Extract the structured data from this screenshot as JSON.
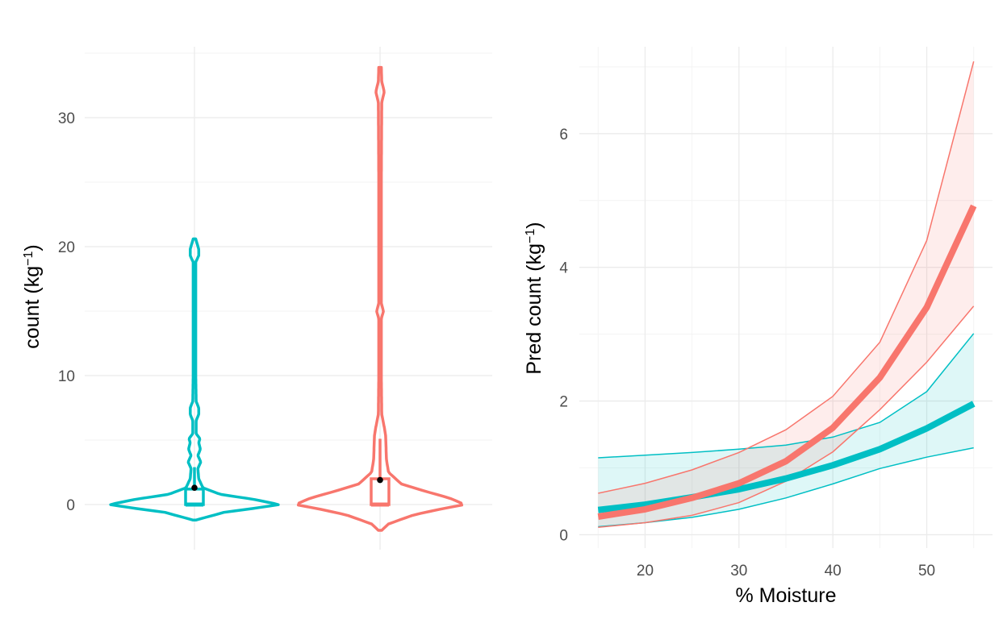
{
  "chart_data": [
    {
      "type": "violin",
      "xlabel": "",
      "ylabel": "count (kg⁻¹)",
      "ylabel_parts": {
        "main": "count (kg",
        "sup": "−1",
        "close": ")"
      },
      "ylim": [
        -3.5,
        35.5
      ],
      "yticks": [
        0,
        10,
        20,
        30
      ],
      "ytick_labels": [
        "0",
        "10",
        "20",
        "30"
      ],
      "grid": true,
      "legend": "none",
      "groups": [
        {
          "color": "#00BFC4",
          "box": {
            "q1": 0,
            "median": 0,
            "q3": 1.2,
            "whisker_high": 2.9
          },
          "mean": 1.3,
          "density": [
            [
              -1.2,
              0.02
            ],
            [
              -0.6,
              0.35
            ],
            [
              -0.3,
              0.7
            ],
            [
              0,
              1
            ],
            [
              0.4,
              0.7
            ],
            [
              0.8,
              0.3
            ],
            [
              1.3,
              0.1
            ],
            [
              2,
              0.05
            ],
            [
              2.8,
              0.04
            ],
            [
              3.3,
              0.075
            ],
            [
              3.8,
              0.04
            ],
            [
              4.3,
              0.07
            ],
            [
              4.8,
              0.05
            ],
            [
              5.1,
              0.065
            ],
            [
              5.5,
              0.02
            ],
            [
              6.5,
              0.02
            ],
            [
              7,
              0.05
            ],
            [
              7.5,
              0.05
            ],
            [
              8,
              0.02
            ],
            [
              10,
              0.015
            ],
            [
              15,
              0.015
            ],
            [
              18.8,
              0.015
            ],
            [
              19.3,
              0.05
            ],
            [
              19.8,
              0.05
            ],
            [
              20.6,
              0.015
            ]
          ]
        },
        {
          "color": "#F8766D",
          "box": {
            "q1": 0,
            "median": 0,
            "q3": 2,
            "whisker_high": 5.1
          },
          "mean": 1.9,
          "density": [
            [
              -2,
              0.02
            ],
            [
              -1.5,
              0.1
            ],
            [
              -0.8,
              0.4
            ],
            [
              -0.3,
              0.75
            ],
            [
              0,
              1
            ],
            [
              0.5,
              0.82
            ],
            [
              1,
              0.55
            ],
            [
              1.6,
              0.25
            ],
            [
              2.5,
              0.1
            ],
            [
              3.5,
              0.075
            ],
            [
              4.6,
              0.07
            ],
            [
              5.4,
              0.065
            ],
            [
              6,
              0.05
            ],
            [
              7,
              0.02
            ],
            [
              10,
              0.015
            ],
            [
              14.4,
              0.015
            ],
            [
              15,
              0.04
            ],
            [
              15.6,
              0.015
            ],
            [
              20,
              0.015
            ],
            [
              25,
              0.015
            ],
            [
              31.2,
              0.02
            ],
            [
              32,
              0.05
            ],
            [
              32.8,
              0.02
            ],
            [
              33.9,
              0.015
            ]
          ]
        }
      ]
    },
    {
      "type": "line",
      "xlabel": "% Moisture",
      "ylabel": "Pred count (kg⁻¹)",
      "ylabel_parts": {
        "main": "Pred count (kg",
        "sup": "−1",
        "close": ")"
      },
      "xlim": [
        13,
        57
      ],
      "ylim": [
        -0.2,
        7.3
      ],
      "xticks": [
        20,
        30,
        40,
        50
      ],
      "xtick_labels": [
        "20",
        "30",
        "40",
        "50"
      ],
      "yticks": [
        0,
        2,
        4,
        6
      ],
      "ytick_labels": [
        "0",
        "2",
        "4",
        "6"
      ],
      "grid": true,
      "legend": "none",
      "x": [
        15,
        20,
        25,
        30,
        35,
        40,
        45,
        50,
        55
      ],
      "series": [
        {
          "color": "#00BFC4",
          "fill": "#E1F6F7",
          "values": [
            0.37,
            0.45,
            0.56,
            0.68,
            0.84,
            1.04,
            1.28,
            1.59,
            1.96
          ],
          "lower": [
            0.12,
            0.18,
            0.26,
            0.38,
            0.55,
            0.76,
            0.99,
            1.16,
            1.3
          ],
          "upper": [
            1.15,
            1.19,
            1.23,
            1.28,
            1.34,
            1.46,
            1.68,
            2.14,
            3.01
          ]
        },
        {
          "color": "#F8766D",
          "fill": "#FDE9E7",
          "values": [
            0.27,
            0.38,
            0.55,
            0.77,
            1.1,
            1.6,
            2.35,
            3.4,
            4.92
          ],
          "lower": [
            0.11,
            0.18,
            0.29,
            0.48,
            0.8,
            1.24,
            1.87,
            2.58,
            3.42
          ],
          "upper": [
            0.62,
            0.77,
            0.97,
            1.23,
            1.57,
            2.07,
            2.88,
            4.4,
            7.08
          ]
        }
      ]
    }
  ]
}
